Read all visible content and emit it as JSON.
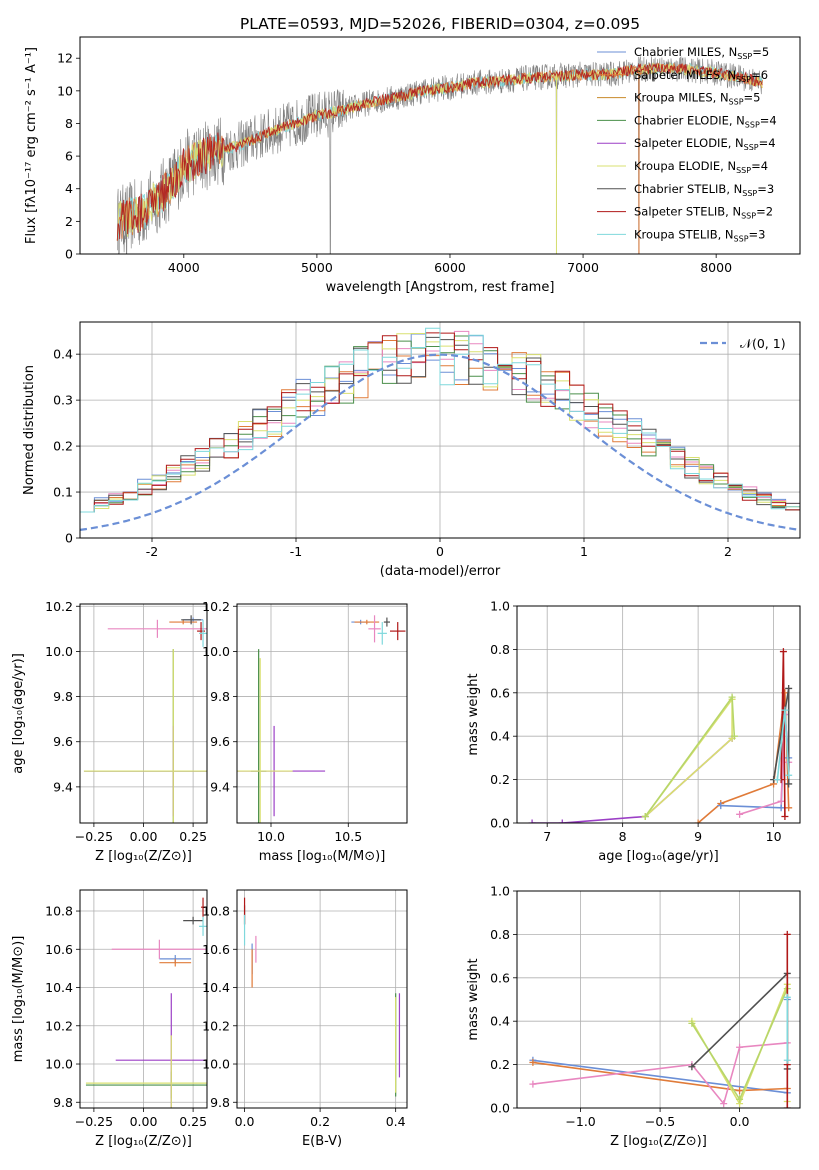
{
  "figure_title": "PLATE=0593, MJD=52026, FIBERID=0304, z=0.095",
  "colors": {
    "Chabrier MILES": "#6b8fd6",
    "Salpeter MILES": "#e07b39",
    "Kroupa MILES": "#c88a2a",
    "Chabrier ELODIE": "#4a8f4a",
    "Salpeter ELODIE": "#9b3fc6",
    "Kroupa ELODIE": "#d9e070",
    "Chabrier STELIB": "#505050",
    "Salpeter STELIB": "#b01818",
    "Kroupa STELIB": "#7fd8dc",
    "extra_pink": "#e887c0",
    "extra_yellowgreen": "#b7d66a"
  },
  "chart_data": [
    {
      "id": "spectrum",
      "type": "line",
      "xlabel": "wavelength [Angstrom, rest frame]",
      "ylabel": "Flux [fλ10⁻¹⁷ erg cm⁻² s⁻¹ A⁻¹]",
      "xlim": [
        3220,
        8630
      ],
      "ylim": [
        0,
        13.3
      ],
      "xticks": [
        4000,
        5000,
        6000,
        7000,
        8000
      ],
      "yticks": [
        0,
        2,
        4,
        6,
        8,
        10,
        12
      ],
      "data_x_range": [
        3500,
        8350
      ],
      "grid": false,
      "legend_position": "right",
      "legend": [
        {
          "name": "Chabrier MILES",
          "sub": "SSP",
          "n": "=5"
        },
        {
          "name": "Salpeter MILES",
          "sub": "SSP",
          "n": "=6"
        },
        {
          "name": "Kroupa MILES",
          "sub": "SSP",
          "n": "=5"
        },
        {
          "name": "Chabrier ELODIE",
          "sub": "SSP",
          "n": "=4"
        },
        {
          "name": "Salpeter ELODIE",
          "sub": "SSP",
          "n": "=4"
        },
        {
          "name": "Kroupa ELODIE",
          "sub": "SSP",
          "n": "=4"
        },
        {
          "name": "Chabrier STELIB",
          "sub": "SSP",
          "n": "=3"
        },
        {
          "name": "Salpeter STELIB",
          "sub": "SSP",
          "n": "=2"
        },
        {
          "name": "Kroupa STELIB",
          "sub": "SSP",
          "n": "=3"
        }
      ],
      "continuum_nodes": [
        [
          3500,
          2.0
        ],
        [
          3700,
          2.6
        ],
        [
          3900,
          4.2
        ],
        [
          4000,
          5.4
        ],
        [
          4200,
          6.2
        ],
        [
          4400,
          6.6
        ],
        [
          4600,
          7.3
        ],
        [
          4800,
          7.9
        ],
        [
          5000,
          8.5
        ],
        [
          5200,
          8.8
        ],
        [
          5400,
          9.3
        ],
        [
          5600,
          9.6
        ],
        [
          5800,
          10.0
        ],
        [
          6000,
          10.2
        ],
        [
          6200,
          10.5
        ],
        [
          6400,
          10.6
        ],
        [
          6600,
          10.8
        ],
        [
          6800,
          10.9
        ],
        [
          7000,
          11.0
        ],
        [
          7200,
          11.0
        ],
        [
          7400,
          11.3
        ],
        [
          7600,
          11.4
        ],
        [
          7800,
          11.3
        ],
        [
          8000,
          11.1
        ],
        [
          8200,
          10.8
        ],
        [
          8350,
          10.5
        ]
      ],
      "drops_to_zero": [
        3570,
        5100,
        6800,
        7420
      ]
    },
    {
      "id": "residuals",
      "type": "histogram",
      "xlabel": "(data-model)/error",
      "ylabel": "Normed distribution",
      "xlim": [
        -2.5,
        2.5
      ],
      "ylim": [
        0,
        0.47
      ],
      "xticks": [
        -2,
        -1,
        0,
        1,
        2
      ],
      "yticks": [
        0.0,
        0.1,
        0.2,
        0.3,
        0.4
      ],
      "grid": true,
      "legend_position": "top-right",
      "reference_curve": {
        "label": "𝒩(0, 1)",
        "mu": 0,
        "sigma": 1
      },
      "bin_width": 0.1
    },
    {
      "id": "age_vs_Z",
      "type": "errorbar",
      "xlabel": "Z [log₁₀(Z/Z⊙)]",
      "ylabel": "age  [log₁₀(age/yr)]",
      "xlim": [
        -0.32,
        0.32
      ],
      "ylim": [
        9.24,
        10.21
      ],
      "xticks": [
        -0.25,
        0.0,
        0.25
      ],
      "xtick_labels": [
        "−0.25",
        "0.00",
        "0.25"
      ],
      "yticks": [
        9.4,
        9.6,
        9.8,
        10.0,
        10.2
      ],
      "ytick_labels": [
        "9.4",
        "9.6",
        "9.8",
        "10.0",
        "10.2"
      ],
      "grid": true,
      "points": [
        {
          "s": "Chabrier MILES",
          "x": 0.25,
          "y": 10.14,
          "xerr": 0.05,
          "yerr": 0.01
        },
        {
          "s": "Salpeter MILES",
          "x": 0.2,
          "y": 10.13,
          "xerr": 0.07,
          "yerr": 0.01
        },
        {
          "s": "extra_pink",
          "x": 0.07,
          "y": 10.1,
          "xerr": 0.25,
          "yerr": 0.04
        },
        {
          "s": "Chabrier ELODIE",
          "x": 0.15,
          "y": 9.47,
          "xerr": 0.45,
          "yerr": 0.54
        },
        {
          "s": "Salpeter ELODIE",
          "x": 0.15,
          "y": 9.47,
          "xerr": 0.45,
          "yerr": 0.2
        },
        {
          "s": "Kroupa ELODIE",
          "x": 0.15,
          "y": 9.47,
          "xerr": 0.45,
          "yerr": 0.54
        },
        {
          "s": "Chabrier STELIB",
          "x": 0.24,
          "y": 10.14,
          "xerr": 0.05,
          "yerr": 0.02
        },
        {
          "s": "Salpeter STELIB",
          "x": 0.29,
          "y": 10.09,
          "xerr": 0.02,
          "yerr": 0.04
        },
        {
          "s": "Kroupa STELIB",
          "x": 0.3,
          "y": 10.08,
          "xerr": 0.02,
          "yerr": 0.06
        }
      ]
    },
    {
      "id": "age_vs_mass",
      "type": "errorbar",
      "xlabel": "mass [log₁₀(M/M⊙)]",
      "ylabel": "",
      "xlim": [
        9.78,
        10.88
      ],
      "ylim": [
        9.24,
        10.21
      ],
      "xticks": [
        10.0,
        10.5
      ],
      "xtick_labels": [
        "10.0",
        "10.5"
      ],
      "yticks": [
        9.4,
        9.6,
        9.8,
        10.0,
        10.2
      ],
      "ytick_labels": [
        "9.4",
        "9.6",
        "9.8",
        "10.0",
        "10.2"
      ],
      "grid": true,
      "points": [
        {
          "s": "Chabrier MILES",
          "x": 10.58,
          "y": 10.13,
          "xerr": 0.06,
          "yerr": 0.01
        },
        {
          "s": "Salpeter MILES",
          "x": 10.62,
          "y": 10.13,
          "xerr": 0.08,
          "yerr": 0.01
        },
        {
          "s": "extra_pink",
          "x": 10.67,
          "y": 10.1,
          "xerr": 0.04,
          "yerr": 0.06
        },
        {
          "s": "Chabrier ELODIE",
          "x": 9.92,
          "y": 9.47,
          "xerr": 0.05,
          "yerr": 0.54
        },
        {
          "s": "Salpeter ELODIE",
          "x": 10.02,
          "y": 9.47,
          "xerr": 0.33,
          "yerr": 0.2
        },
        {
          "s": "Kroupa ELODIE",
          "x": 9.93,
          "y": 9.47,
          "xerr": 0.21,
          "yerr": 0.5
        },
        {
          "s": "Chabrier STELIB",
          "x": 10.75,
          "y": 10.13,
          "xerr": 0.02,
          "yerr": 0.02
        },
        {
          "s": "Salpeter STELIB",
          "x": 10.82,
          "y": 10.09,
          "xerr": 0.05,
          "yerr": 0.04
        },
        {
          "s": "Kroupa STELIB",
          "x": 10.72,
          "y": 10.08,
          "xerr": 0.03,
          "yerr": 0.05
        }
      ]
    },
    {
      "id": "mass_weight_vs_age",
      "type": "line",
      "xlabel": "age  [log₁₀(age/yr)]",
      "ylabel": "mass weight",
      "xlim": [
        6.6,
        10.35
      ],
      "ylim": [
        0,
        1.0
      ],
      "xticks": [
        7,
        8,
        9,
        10
      ],
      "xtick_labels": [
        "7",
        "8",
        "9",
        "10"
      ],
      "yticks": [
        0.0,
        0.2,
        0.4,
        0.6,
        0.8,
        1.0
      ],
      "ytick_labels": [
        "0.0",
        "0.2",
        "0.4",
        "0.6",
        "0.8",
        "1.0"
      ],
      "grid": true,
      "series": [
        {
          "s": "Salpeter ELODIE",
          "x": [
            6.8,
            7.2,
            8.3,
            9.45
          ],
          "y": [
            0.0,
            0.0,
            0.03,
            0.39
          ]
        },
        {
          "s": "Kroupa ELODIE",
          "x": [
            8.3,
            9.45,
            9.45,
            8.3
          ],
          "y": [
            0.03,
            0.57,
            0.39,
            0.03
          ]
        },
        {
          "s": "extra_yellowgreen",
          "x": [
            8.3,
            9.45,
            9.48
          ],
          "y": [
            0.03,
            0.58,
            0.4
          ]
        },
        {
          "s": "Salpeter MILES",
          "x": [
            9.0,
            9.3,
            10.0,
            10.15,
            10.2
          ],
          "y": [
            0.0,
            0.09,
            0.18,
            0.6,
            0.07
          ]
        },
        {
          "s": "Chabrier MILES",
          "x": [
            9.3,
            10.1,
            10.15,
            10.2
          ],
          "y": [
            0.08,
            0.07,
            0.5,
            0.3
          ]
        },
        {
          "s": "extra_pink",
          "x": [
            9.55,
            10.1,
            10.15,
            10.2
          ],
          "y": [
            0.04,
            0.1,
            0.5,
            0.28
          ]
        },
        {
          "s": "Salpeter STELIB",
          "x": [
            10.1,
            10.13,
            10.15
          ],
          "y": [
            0.2,
            0.79,
            0.03
          ]
        },
        {
          "s": "Chabrier STELIB",
          "x": [
            10.0,
            10.2,
            10.2
          ],
          "y": [
            0.2,
            0.62,
            0.18
          ]
        },
        {
          "s": "Kroupa STELIB",
          "x": [
            10.05,
            10.15,
            10.2
          ],
          "y": [
            0.2,
            0.52,
            0.22
          ]
        }
      ]
    },
    {
      "id": "mass_vs_Z",
      "type": "errorbar",
      "xlabel": "Z [log₁₀(Z/Z⊙)]",
      "ylabel": "mass [log₁₀(M/M⊙)]",
      "xlim": [
        -0.32,
        0.32
      ],
      "ylim": [
        9.77,
        10.91
      ],
      "xticks": [
        -0.25,
        0.0,
        0.25
      ],
      "xtick_labels": [
        "−0.25",
        "0.00",
        "0.25"
      ],
      "yticks": [
        9.8,
        10.0,
        10.2,
        10.4,
        10.6,
        10.8
      ],
      "ytick_labels": [
        "9.8",
        "10.0",
        "10.2",
        "10.4",
        "10.6",
        "10.8"
      ],
      "grid": true,
      "points": [
        {
          "s": "Chabrier MILES",
          "x": 0.16,
          "y": 10.55,
          "xerr": 0.08,
          "yerr": 0.02
        },
        {
          "s": "Salpeter MILES",
          "x": 0.16,
          "y": 10.53,
          "xerr": 0.08,
          "yerr": 0.02
        },
        {
          "s": "extra_pink",
          "x": 0.08,
          "y": 10.6,
          "xerr": 0.24,
          "yerr": 0.05
        },
        {
          "s": "Chabrier ELODIE",
          "x": 0.14,
          "y": 9.89,
          "xerr": 0.43,
          "yerr": 0.07
        },
        {
          "s": "Salpeter ELODIE",
          "x": 0.14,
          "y": 10.02,
          "xerr": 0.28,
          "yerr": 0.35
        },
        {
          "s": "Kroupa ELODIE",
          "x": 0.14,
          "y": 9.9,
          "xerr": 0.43,
          "yerr": 0.25
        },
        {
          "s": "Chabrier STELIB",
          "x": 0.25,
          "y": 10.75,
          "xerr": 0.05,
          "yerr": 0.02
        },
        {
          "s": "Salpeter STELIB",
          "x": 0.3,
          "y": 10.82,
          "xerr": 0.01,
          "yerr": 0.05
        },
        {
          "s": "Kroupa STELIB",
          "x": 0.3,
          "y": 10.72,
          "xerr": 0.02,
          "yerr": 0.05
        }
      ]
    },
    {
      "id": "mass_vs_EBV",
      "type": "errorbar",
      "xlabel": "E(B-V)",
      "ylabel": "",
      "xlim": [
        -0.02,
        0.43
      ],
      "ylim": [
        9.77,
        10.91
      ],
      "xticks": [
        0.0,
        0.2,
        0.4
      ],
      "xtick_labels": [
        "0.0",
        "0.2",
        "0.4"
      ],
      "yticks": [
        9.8,
        10.0,
        10.2,
        10.4,
        10.6,
        10.8
      ],
      "ytick_labels": [
        "9.8",
        "10.0",
        "10.2",
        "10.4",
        "10.6",
        "10.8"
      ],
      "grid": true,
      "points": [
        {
          "s": "Chabrier MILES",
          "x": 0.02,
          "y": 10.55,
          "xerr": 0.0,
          "yerr": 0.08
        },
        {
          "s": "Salpeter MILES",
          "x": 0.02,
          "y": 10.5,
          "xerr": 0.0,
          "yerr": 0.1
        },
        {
          "s": "extra_pink",
          "x": 0.03,
          "y": 10.6,
          "xerr": 0.0,
          "yerr": 0.07
        },
        {
          "s": "Chabrier ELODIE",
          "x": 0.4,
          "y": 10.1,
          "xerr": 0.0,
          "yerr": 0.27
        },
        {
          "s": "Salpeter ELODIE",
          "x": 0.41,
          "y": 10.15,
          "xerr": 0.0,
          "yerr": 0.22
        },
        {
          "s": "Kroupa ELODIE",
          "x": 0.4,
          "y": 10.1,
          "xerr": 0.0,
          "yerr": 0.25
        },
        {
          "s": "Chabrier STELIB",
          "x": 0.0,
          "y": 10.78,
          "xerr": 0.0,
          "yerr": 0.05
        },
        {
          "s": "Salpeter STELIB",
          "x": 0.0,
          "y": 10.8,
          "xerr": 0.0,
          "yerr": 0.07
        },
        {
          "s": "Kroupa STELIB",
          "x": 0.0,
          "y": 10.7,
          "xerr": 0.0,
          "yerr": 0.08
        }
      ]
    },
    {
      "id": "mass_weight_vs_Z",
      "type": "line",
      "xlabel": "Z [log₁₀(Z/Z⊙)]",
      "ylabel": "mass weight",
      "xlim": [
        -1.4,
        0.38
      ],
      "ylim": [
        0,
        1.0
      ],
      "xticks": [
        -1.0,
        -0.5,
        0.0
      ],
      "xtick_labels": [
        "−1.0",
        "−0.5",
        "0.0"
      ],
      "yticks": [
        0.0,
        0.2,
        0.4,
        0.6,
        0.8,
        1.0
      ],
      "ytick_labels": [
        "0.0",
        "0.2",
        "0.4",
        "0.6",
        "0.8",
        "1.0"
      ],
      "grid": true,
      "series": [
        {
          "s": "Chabrier MILES",
          "x": [
            -1.3,
            0.3,
            0.3
          ],
          "y": [
            0.22,
            0.07,
            0.5
          ]
        },
        {
          "s": "Salpeter MILES",
          "x": [
            -1.3,
            0.0,
            0.3
          ],
          "y": [
            0.21,
            0.08,
            0.09
          ]
        },
        {
          "s": "extra_pink",
          "x": [
            -1.3,
            -0.3,
            -0.1,
            0.0,
            0.3
          ],
          "y": [
            0.11,
            0.2,
            0.02,
            0.28,
            0.3
          ]
        },
        {
          "s": "Kroupa ELODIE",
          "x": [
            -0.3,
            0.0,
            0.3,
            0.3
          ],
          "y": [
            0.4,
            0.02,
            0.57,
            0.03
          ]
        },
        {
          "s": "extra_yellowgreen",
          "x": [
            -0.3,
            0.0,
            0.3
          ],
          "y": [
            0.39,
            0.04,
            0.55
          ]
        },
        {
          "s": "Chabrier STELIB",
          "x": [
            -0.3,
            0.3,
            0.3
          ],
          "y": [
            0.19,
            0.62,
            0.18
          ]
        },
        {
          "s": "Salpeter STELIB",
          "x": [
            0.3,
            0.3,
            0.3
          ],
          "y": [
            0.2,
            0.8,
            0.0
          ]
        },
        {
          "s": "Kroupa STELIB",
          "x": [
            0.3,
            0.3
          ],
          "y": [
            0.22,
            0.51
          ]
        }
      ]
    }
  ]
}
